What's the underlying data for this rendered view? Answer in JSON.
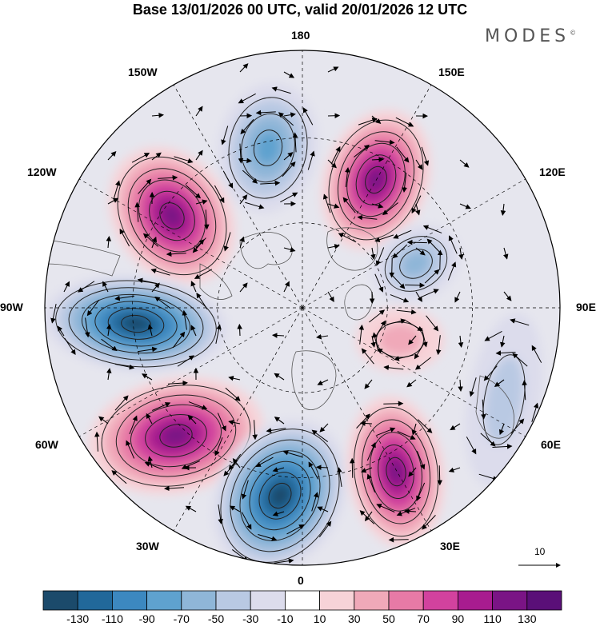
{
  "title": "Base 13/01/2026 00 UTC, valid 20/01/2026 12 UTC",
  "logo": "MODES",
  "logo_mark": "©",
  "longitude_labels": {
    "l180": "180",
    "l150w": "150W",
    "l150e": "150E",
    "l120w": "120W",
    "l120e": "120E",
    "l90w": "90W",
    "l90e": "90E",
    "l60w": "60W",
    "l60e": "60E",
    "l30w": "30W",
    "l30e": "30E",
    "l0": "0"
  },
  "reference_vector": {
    "label": "10"
  },
  "colorbar": {
    "labels": [
      "-130",
      "-110",
      "-90",
      "-70",
      "-50",
      "-30",
      "-10",
      "10",
      "30",
      "50",
      "70",
      "90",
      "110",
      "130"
    ],
    "colors": [
      "#1b4a6b",
      "#21689a",
      "#3c88c0",
      "#5fa2cf",
      "#8fb6d8",
      "#b9c9e3",
      "#dcdcec",
      "#ffffff",
      "#f7d3d8",
      "#f0a9b9",
      "#e77aa6",
      "#d2429e",
      "#a81c8f",
      "#7a1485",
      "#5a0f78"
    ]
  },
  "anomaly_centers": [
    {
      "sign": "negative",
      "level": 3
    },
    {
      "sign": "positive",
      "level": 5
    },
    {
      "sign": "negative",
      "level": 2
    },
    {
      "sign": "positive",
      "level": 5
    },
    {
      "sign": "negative",
      "level": 6
    },
    {
      "sign": "positive",
      "level": 5
    },
    {
      "sign": "negative",
      "level": 6
    },
    {
      "sign": "positive",
      "level": 5
    },
    {
      "sign": "negative",
      "level": 1
    },
    {
      "sign": "positive",
      "level": 1
    }
  ]
}
